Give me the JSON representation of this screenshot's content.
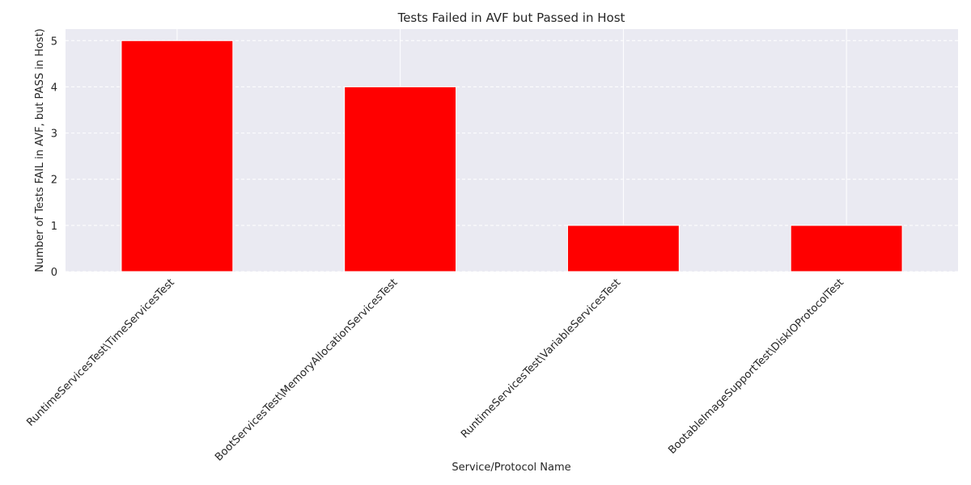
{
  "chart_data": {
    "type": "bar",
    "title": "Tests Failed in AVF but Passed in Host",
    "xlabel": "Service/Protocol Name",
    "ylabel": "Number of Tests FAIL in AVF, but PASS in Host)",
    "categories": [
      "RuntimeServicesTest\\TimeServicesTest",
      "BootServicesTest\\MemoryAllocationServicesTest",
      "RuntimeServicesTest\\VariableServicesTest",
      "BootableImageSupportTest\\DiskIOProtocolTest"
    ],
    "values": [
      5,
      4,
      1,
      1
    ],
    "yticks": [
      "0",
      "1",
      "2",
      "3",
      "4",
      "5"
    ],
    "ylim": [
      0,
      5.25
    ],
    "grid": true,
    "bar_color": "#ff0000",
    "background_color": "#eaeaf2",
    "grid_color": "#ffffff"
  }
}
